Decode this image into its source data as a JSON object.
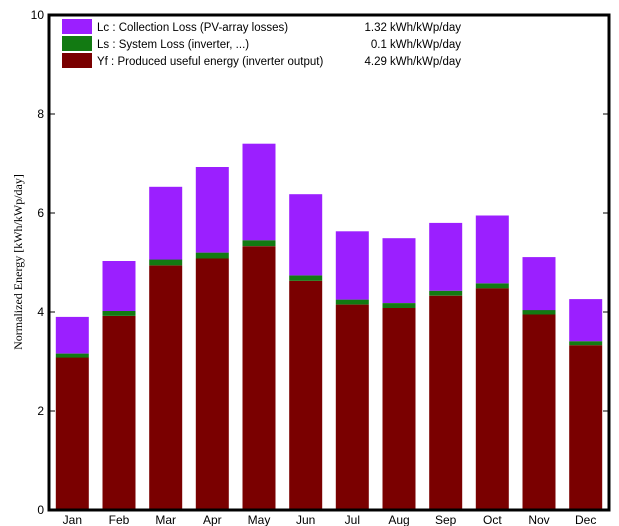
{
  "chart_data": {
    "type": "bar",
    "stacked": true,
    "categories": [
      "Jan",
      "Feb",
      "Mar",
      "Apr",
      "May",
      "Jun",
      "Jul",
      "Aug",
      "Sep",
      "Oct",
      "Nov",
      "Dec"
    ],
    "series": [
      {
        "name": "Yf : Produced useful energy  (inverter output)",
        "summary": "4.29 kWh/kWp/day",
        "color": "#7a0000",
        "values": [
          3.08,
          3.92,
          4.94,
          5.08,
          5.33,
          4.63,
          4.15,
          4.08,
          4.33,
          4.48,
          3.95,
          3.33
        ]
      },
      {
        "name": "Ls : System Loss  (inverter, ...)",
        "summary": "0.1 kWh/kWp/day",
        "color": "#127a12",
        "values": [
          0.08,
          0.1,
          0.12,
          0.12,
          0.12,
          0.11,
          0.1,
          0.1,
          0.1,
          0.1,
          0.09,
          0.08
        ]
      },
      {
        "name": "Lc : Collection Loss (PV-array losses)",
        "summary": "1.32 kWh/kWp/day",
        "color": "#9b1fff",
        "values": [
          0.74,
          1.01,
          1.47,
          1.73,
          1.95,
          1.64,
          1.38,
          1.31,
          1.37,
          1.37,
          1.07,
          0.85
        ]
      }
    ],
    "legend_order": [
      2,
      1,
      0
    ],
    "legend_position": "top-left",
    "xlabel": "",
    "ylabel": "Normalized Energy [kWh/kWp/day]",
    "ylim": [
      0,
      10
    ],
    "yticks": [
      0,
      2,
      4,
      6,
      8,
      10
    ],
    "grid": false
  }
}
